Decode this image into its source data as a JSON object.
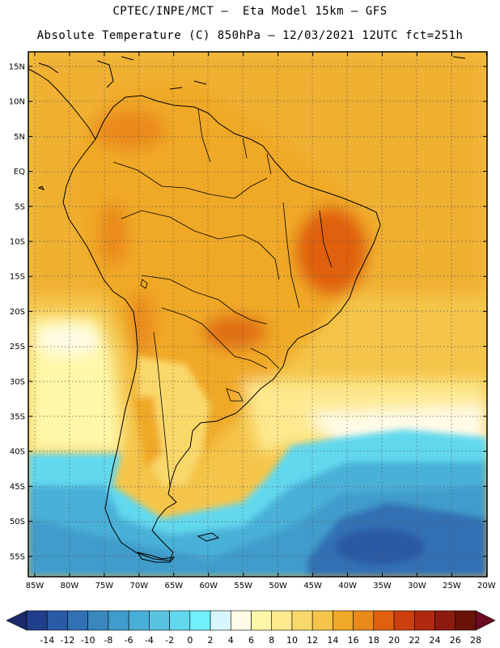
{
  "header": {
    "line1": "CPTEC/INPE/MCT –  Eta Model 15km – GFS",
    "line2": "Absolute Temperature (C) 850hPa – 12/03/2021 12UTC fct=251h"
  },
  "map": {
    "lat_labels": [
      "15N",
      "10N",
      "5N",
      "EQ",
      "5S",
      "10S",
      "15S",
      "20S",
      "25S",
      "30S",
      "35S",
      "40S",
      "45S",
      "50S",
      "55S"
    ],
    "lon_labels": [
      "85W",
      "80W",
      "75W",
      "70W",
      "65W",
      "60W",
      "55W",
      "50W",
      "45W",
      "40W",
      "35W",
      "30W",
      "25W",
      "20W"
    ],
    "region": "South America",
    "field": "850hPa temperature"
  },
  "colorbar": {
    "labels": [
      "-14",
      "-12",
      "-10",
      "-8",
      "-6",
      "-4",
      "-2",
      "0",
      "2",
      "4",
      "6",
      "8",
      "10",
      "12",
      "14",
      "16",
      "18",
      "20",
      "22",
      "24",
      "26",
      "28"
    ],
    "colors": [
      "#1f3f8c",
      "#2a5aa5",
      "#3070b4",
      "#3a87c0",
      "#3f9ccb",
      "#48b0d8",
      "#58c4e2",
      "#62d8ee",
      "#70f0fb",
      "#d8f6ff",
      "#fffbe6",
      "#fff7a8",
      "#fde98e",
      "#f9d86a",
      "#f4c54a",
      "#f0a928",
      "#ea8a1a",
      "#e06010",
      "#cc4010",
      "#b02a10",
      "#8c1a10",
      "#6b1208"
    ],
    "left_arrow_color": "#1a2a6a",
    "right_arrow_color": "#6b0a20"
  }
}
